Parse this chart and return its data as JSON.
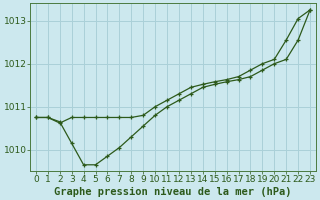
{
  "title": "Graphe pression niveau de la mer (hPa)",
  "bg_color": "#cce8ee",
  "grid_color": "#aad0d8",
  "line_color": "#2d5a1b",
  "marker_color": "#2d5a1b",
  "xlim": [
    -0.5,
    23.5
  ],
  "ylim": [
    1009.5,
    1013.4
  ],
  "yticks": [
    1010,
    1011,
    1012,
    1013
  ],
  "ytick_labels": [
    "1010",
    "1011",
    "1012",
    "1013"
  ],
  "xticks": [
    0,
    1,
    2,
    3,
    4,
    5,
    6,
    7,
    8,
    9,
    10,
    11,
    12,
    13,
    14,
    15,
    16,
    17,
    18,
    19,
    20,
    21,
    22,
    23
  ],
  "line1_x": [
    0,
    1,
    2,
    3,
    4,
    5,
    6,
    7,
    8,
    9,
    10,
    11,
    12,
    13,
    14,
    15,
    16,
    17,
    18,
    19,
    20,
    21,
    22,
    23
  ],
  "line1_y": [
    1010.75,
    1010.75,
    1010.65,
    1010.15,
    1009.65,
    1009.65,
    1009.85,
    1010.05,
    1010.3,
    1010.55,
    1010.8,
    1011.0,
    1011.15,
    1011.3,
    1011.45,
    1011.52,
    1011.58,
    1011.63,
    1011.7,
    1011.85,
    1012.0,
    1012.1,
    1012.55,
    1013.25
  ],
  "line2_x": [
    0,
    1,
    2,
    3,
    4,
    5,
    6,
    7,
    8,
    9,
    10,
    11,
    12,
    13,
    14,
    15,
    16,
    17,
    18,
    19,
    20,
    21,
    22,
    23
  ],
  "line2_y": [
    1010.75,
    1010.75,
    1010.62,
    1010.75,
    1010.75,
    1010.75,
    1010.75,
    1010.75,
    1010.75,
    1010.8,
    1011.0,
    1011.15,
    1011.3,
    1011.45,
    1011.52,
    1011.58,
    1011.63,
    1011.7,
    1011.85,
    1012.0,
    1012.1,
    1012.55,
    1013.05,
    1013.25
  ],
  "xlabel_fontsize": 6.5,
  "ylabel_fontsize": 6.5,
  "title_fontsize": 7.5
}
